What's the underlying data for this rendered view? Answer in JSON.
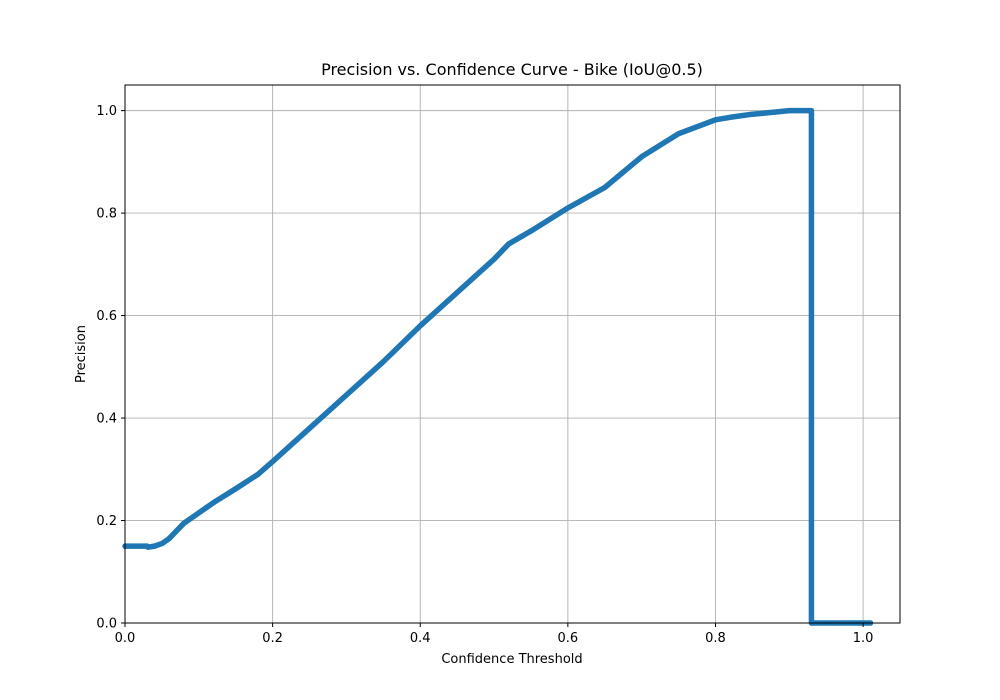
{
  "chart_data": {
    "type": "line",
    "title": "Precision vs. Confidence Curve - Bike (IoU@0.5)",
    "xlabel": "Confidence Threshold",
    "ylabel": "Precision",
    "xlim": [
      0.0,
      1.05
    ],
    "ylim": [
      0.0,
      1.05
    ],
    "xticks": [
      0.0,
      0.2,
      0.4,
      0.6,
      0.8,
      1.0
    ],
    "xtick_labels": [
      "0.0",
      "0.2",
      "0.4",
      "0.6",
      "0.8",
      "1.0"
    ],
    "yticks": [
      0.0,
      0.2,
      0.4,
      0.6,
      0.8,
      1.0
    ],
    "ytick_labels": [
      "0.0",
      "0.2",
      "0.4",
      "0.6",
      "0.8",
      "1.0"
    ],
    "grid": true,
    "series": [
      {
        "color": "#1f77b4",
        "x": [
          0.0,
          0.01,
          0.02,
          0.03,
          0.031,
          0.04,
          0.05,
          0.06,
          0.07,
          0.08,
          0.1,
          0.12,
          0.15,
          0.18,
          0.2,
          0.25,
          0.3,
          0.35,
          0.4,
          0.45,
          0.5,
          0.52,
          0.55,
          0.6,
          0.65,
          0.7,
          0.75,
          0.8,
          0.82,
          0.85,
          0.88,
          0.9,
          0.93,
          0.93,
          0.96,
          0.98,
          1.01
        ],
        "y": [
          0.15,
          0.15,
          0.15,
          0.15,
          0.148,
          0.15,
          0.155,
          0.165,
          0.18,
          0.195,
          0.215,
          0.235,
          0.262,
          0.29,
          0.315,
          0.38,
          0.445,
          0.51,
          0.58,
          0.645,
          0.71,
          0.74,
          0.765,
          0.81,
          0.85,
          0.91,
          0.955,
          0.982,
          0.987,
          0.993,
          0.997,
          1.0,
          1.0,
          0.0,
          0.0,
          0.0,
          0.0
        ]
      }
    ]
  }
}
